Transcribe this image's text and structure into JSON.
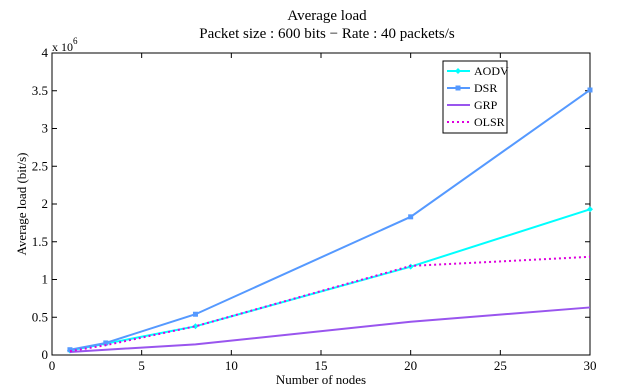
{
  "chart_data": {
    "type": "line",
    "title": "Average load",
    "subtitle": "Packet size : 600 bits − Rate : 40 packets/s",
    "xlabel": "Number of nodes",
    "ylabel": "Average load (bit/s)",
    "y_scale_label": "x 10",
    "y_scale_exponent": "6",
    "xlim": [
      0,
      30
    ],
    "ylim": [
      0,
      4
    ],
    "x_ticks": [
      0,
      5,
      10,
      15,
      20,
      25,
      30
    ],
    "y_ticks": [
      0,
      0.5,
      1,
      1.5,
      2,
      2.5,
      3,
      3.5,
      4
    ],
    "x_tick_labels": [
      "0",
      "5",
      "10",
      "15",
      "20",
      "25",
      "30"
    ],
    "y_tick_labels": [
      "0",
      "0.5",
      "1",
      "1.5",
      "2",
      "2.5",
      "3",
      "3.5",
      "4"
    ],
    "grid": false,
    "legend_position": "top-right",
    "series": [
      {
        "name": "AODV",
        "color": "#00FFFF",
        "marker": "diamond",
        "dash": "solid",
        "x": [
          1,
          3,
          8,
          20,
          30
        ],
        "y": [
          0.06,
          0.15,
          0.38,
          1.17,
          1.93
        ]
      },
      {
        "name": "DSR",
        "color": "#5599FF",
        "marker": "square",
        "dash": "solid",
        "x": [
          1,
          3,
          8,
          20,
          30
        ],
        "y": [
          0.07,
          0.16,
          0.54,
          1.83,
          3.51
        ]
      },
      {
        "name": "GRP",
        "color": "#9955EE",
        "marker": "none",
        "dash": "solid",
        "x": [
          1,
          3,
          8,
          20,
          30
        ],
        "y": [
          0.04,
          0.07,
          0.14,
          0.44,
          0.63
        ]
      },
      {
        "name": "OLSR",
        "color": "#DD00DD",
        "marker": "none",
        "dash": "dotted",
        "x": [
          1,
          3,
          8,
          20,
          30
        ],
        "y": [
          0.05,
          0.13,
          0.38,
          1.18,
          1.3
        ]
      }
    ]
  }
}
